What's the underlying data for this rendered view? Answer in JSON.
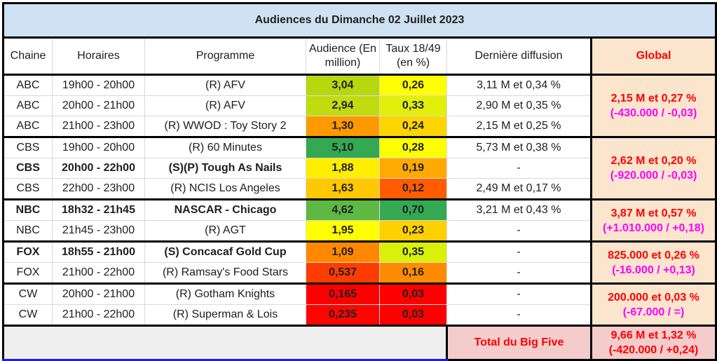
{
  "title": "Audiences du Dimanche 02 Juillet 2023",
  "columns": {
    "chaine": "Chaine",
    "horaires": "Horaires",
    "programme": "Programme",
    "audience": "Audience (En million)",
    "taux": "Taux 18/49 (en %)",
    "derniere": "Dernière diffusion",
    "global": "Global"
  },
  "rows": [
    {
      "chaine": "ABC",
      "horaires": "19h00 - 20h00",
      "programme": "(R) AFV",
      "audience": "3,04",
      "taux": "0,26",
      "derniere": "3,11 M et 0,34 %",
      "bold": false,
      "audience_color": "#b7d80f",
      "taux_color": "#ffff00"
    },
    {
      "chaine": "ABC",
      "horaires": "20h00 - 21h00",
      "programme": "(R) AFV",
      "audience": "2,94",
      "taux": "0,33",
      "derniere": "2,90 M et 0,35 %",
      "bold": false,
      "audience_color": "#c0dc10",
      "taux_color": "#e2ef0b"
    },
    {
      "chaine": "ABC",
      "horaires": "21h00 - 23h00",
      "programme": "(R) WWOD : Toy Story 2",
      "audience": "1,30",
      "taux": "0,24",
      "derniere": "2,15 M et 0,25 %",
      "bold": false,
      "audience_color": "#ff9900",
      "taux_color": "#ffd500"
    },
    {
      "chaine": "CBS",
      "horaires": "19h00 - 20h00",
      "programme": "(R) 60 Minutes",
      "audience": "5,10",
      "taux": "0,28",
      "derniere": "5,73 M et 0,38 %",
      "bold": false,
      "audience_color": "#34a853",
      "taux_color": "#ffff00"
    },
    {
      "chaine": "CBS",
      "horaires": "20h00 - 22h00",
      "programme": "(S)(P) Tough As Nails",
      "audience": "1,88",
      "taux": "0,19",
      "derniere": "-",
      "bold": true,
      "audience_color": "#ffee00",
      "taux_color": "#ffaa00"
    },
    {
      "chaine": "CBS",
      "horaires": "22h00 - 23h00",
      "programme": "(R) NCIS Los Angeles",
      "audience": "1,63",
      "taux": "0,12",
      "derniere": "2,49 M et 0,17 %",
      "bold": false,
      "audience_color": "#ffc800",
      "taux_color": "#ff5c00"
    },
    {
      "chaine": "NBC",
      "horaires": "18h32 - 21h45",
      "programme": "NASCAR - Chicago",
      "audience": "4,62",
      "taux": "0,70",
      "derniere": "3,21 M et 0,43 %",
      "bold": true,
      "audience_color": "#5db844",
      "taux_color": "#34a853"
    },
    {
      "chaine": "NBC",
      "horaires": "21h45 - 23h00",
      "programme": "(R) AGT",
      "audience": "1,95",
      "taux": "0,23",
      "derniere": "-",
      "bold": false,
      "audience_color": "#ffff00",
      "taux_color": "#ffd000"
    },
    {
      "chaine": "FOX",
      "horaires": "18h55 - 21h00",
      "programme": "(S) Concacaf Gold Cup",
      "audience": "1,09",
      "taux": "0,35",
      "derniere": "-",
      "bold": true,
      "audience_color": "#ff8800",
      "taux_color": "#d9f00a"
    },
    {
      "chaine": "FOX",
      "horaires": "21h00 - 22h00",
      "programme": "(R) Ramsay's Food Stars",
      "audience": "0,537",
      "taux": "0,16",
      "derniere": "-",
      "bold": false,
      "audience_color": "#ff3c00",
      "taux_color": "#ff8c00"
    },
    {
      "chaine": "CW",
      "horaires": "20h00 - 21h00",
      "programme": "(R) Gotham Knights",
      "audience": "0,165",
      "taux": "0,03",
      "derniere": "-",
      "bold": false,
      "audience_color": "#ff0000",
      "taux_color": "#ff0000"
    },
    {
      "chaine": "CW",
      "horaires": "21h00 - 22h00",
      "programme": "(R) Superman & Lois",
      "audience": "0,235",
      "taux": "0,03",
      "derniere": "-",
      "bold": false,
      "audience_color": "#ff0500",
      "taux_color": "#ff0000"
    }
  ],
  "globals": [
    {
      "network": "ABC",
      "line1": "2,15 M et 0,27 %",
      "line2": "(-430.000 / -0,03)"
    },
    {
      "network": "CBS",
      "line1": "2,62 M et 0,20 %",
      "line2": "(-920.000 / -0,03)"
    },
    {
      "network": "NBC",
      "line1": "3,87 M et 0,57 %",
      "line2": "(+1.010.000 / +0,18)"
    },
    {
      "network": "FOX",
      "line1": "825.000 et 0,26 %",
      "line2": "(-16.000 / +0,13)"
    },
    {
      "network": "CW",
      "line1": "200.000 et 0,03 %",
      "line2": "(-67.000 / =)"
    }
  ],
  "total": {
    "label": "Total du Big Five",
    "line1": "9,66 M et 1,32 %",
    "line2": "(-420.000 / +0,24)"
  },
  "colors": {
    "title_bg": "#cfe2f3",
    "global_bg": "#fce5cd",
    "total_bg": "#f4cccc",
    "global_main": "#ff0000",
    "global_delta": "#ff00ff"
  }
}
